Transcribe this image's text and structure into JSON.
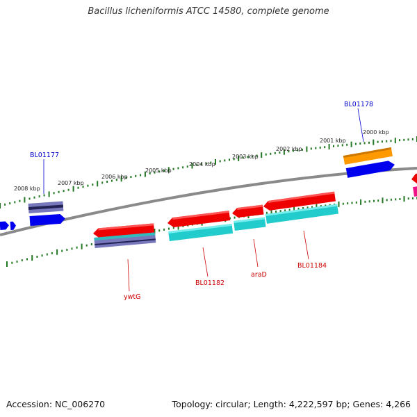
{
  "title": "Bacillus licheniformis ATCC 14580, complete genome",
  "footer": {
    "accession": "Accession: NC_006270",
    "summary": "Topology: circular; Length: 4,222,597 bp; Genes: 4,266"
  },
  "scale_labels": [
    "2000 kbp",
    "2001 kbp",
    "2002 kbp",
    "2003 kbp",
    "2004 kbp",
    "2005 kbp",
    "2006 kbp",
    "2007 kbp",
    "2008 kbp"
  ],
  "gene_labels": {
    "forward": [
      "BL01177",
      "BL01178"
    ],
    "reverse": [
      "ywtG",
      "BL01182",
      "araD",
      "BL01184"
    ]
  },
  "colors": {
    "forward_label": "#0000cc",
    "reverse_label": "#cc0000",
    "cds_forward": "#0000ee",
    "cds_reverse": "#ee0000",
    "feature_cyan": "#22cccc",
    "feature_orange": "#ff9900",
    "feature_purple": "#7777bb",
    "backbone": "#888888",
    "tick_green": "#227722"
  }
}
